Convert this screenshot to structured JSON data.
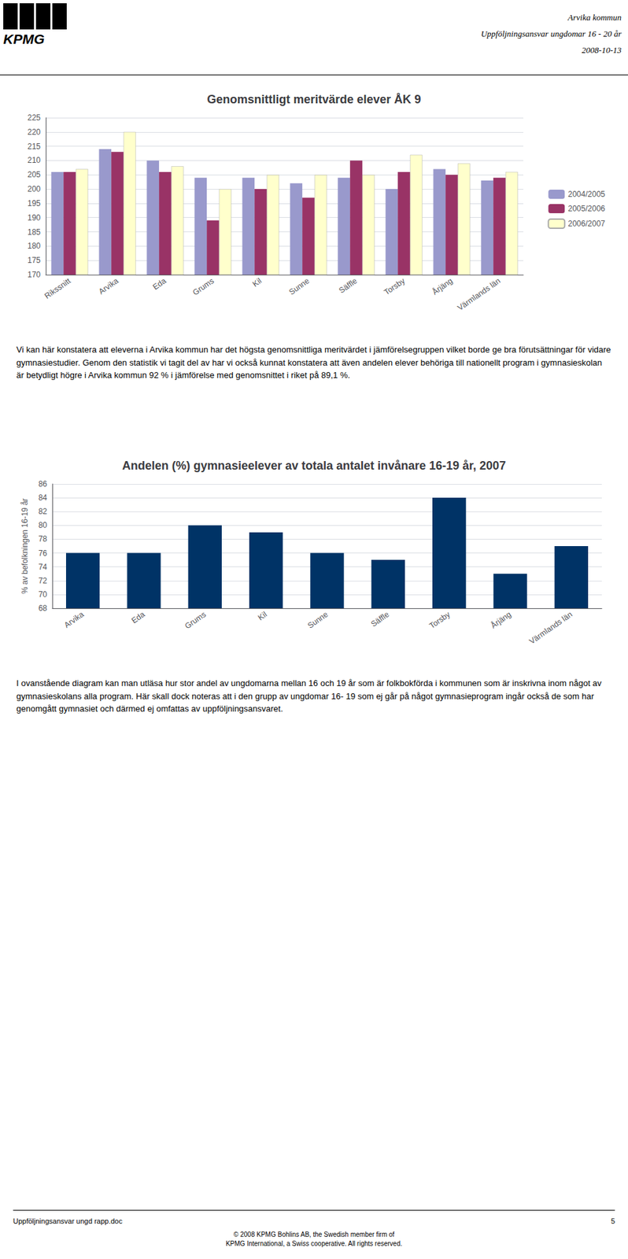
{
  "header": {
    "logo": "KPMG",
    "lines": [
      "Arvika kommun",
      "Uppföljningsansvar ungdomar 16 - 20 år",
      "2008-10-13"
    ]
  },
  "chart_data": [
    {
      "type": "bar",
      "title": "Genomsnittligt meritvärde elever ÅK 9",
      "categories": [
        "Rikssnitt",
        "Arvika",
        "Eda",
        "Grums",
        "Kil",
        "Sunne",
        "Säffle",
        "Torsby",
        "Årjäng",
        "Värmlands län"
      ],
      "series": [
        {
          "name": "2004/2005",
          "color": "#9999CC",
          "values": [
            206,
            214,
            210,
            204,
            204,
            202,
            204,
            200,
            207,
            203
          ]
        },
        {
          "name": "2005/2006",
          "color": "#993366",
          "values": [
            206,
            213,
            206,
            189,
            200,
            197,
            210,
            206,
            205,
            204
          ]
        },
        {
          "name": "2006/2007",
          "color": "#FFFFCC",
          "values": [
            207,
            220,
            208,
            200,
            205,
            205,
            205,
            212,
            209,
            206
          ]
        }
      ],
      "ylim": [
        170,
        225
      ],
      "yticks": [
        170,
        175,
        180,
        185,
        190,
        195,
        200,
        205,
        210,
        215,
        220,
        225
      ],
      "grid": true,
      "legend": "right"
    },
    {
      "type": "bar",
      "title": "Andelen (%) gymnasieelever av totala antalet invånare 16-19 år, 2007",
      "categories": [
        "Arvika",
        "Eda",
        "Grums",
        "Kil",
        "Sunne",
        "Säffle",
        "Torsby",
        "Årjäng",
        "Värmlands län"
      ],
      "values": [
        76,
        76,
        80,
        79,
        76,
        75,
        84,
        73,
        77
      ],
      "color": "#003366",
      "ylabel": "% av befolkningen 16-19 år",
      "ylim": [
        68,
        86
      ],
      "yticks": [
        68,
        70,
        72,
        74,
        76,
        78,
        80,
        82,
        84,
        86
      ],
      "grid": true
    }
  ],
  "paragraphs": [
    "Vi kan här konstatera att eleverna i Arvika kommun har det högsta genomsnittliga meritvärdet i jämförelsegruppen vilket borde ge bra förutsättningar för vidare gymnasiestudier. Genom den statistik vi tagit del av har vi också kunnat konstatera att även andelen elever behöriga till nationellt program i gymnasieskolan är betydligt högre i Arvika kommun 92 % i jämförelse med genomsnittet i riket på 89,1 %.",
    "I ovanstående diagram kan man utläsa hur stor andel av ungdomarna mellan 16 och 19 år som är folkbokförda i kommunen som är inskrivna inom något av gymnasieskolans alla program. Här skall dock noteras att i den grupp av ungdomar 16- 19 som ej går på något gymnasieprogram ingår också de som har genomgått gymnasiet och därmed ej omfattas av uppföljningsansvaret."
  ],
  "footer": {
    "left": "Uppföljningsansvar ungd rapp.doc",
    "right": "5",
    "bottom": "© 2008 KPMG Bohlins AB, the Swedish member firm of\nKPMG International, a Swiss cooperative. All rights reserved."
  }
}
